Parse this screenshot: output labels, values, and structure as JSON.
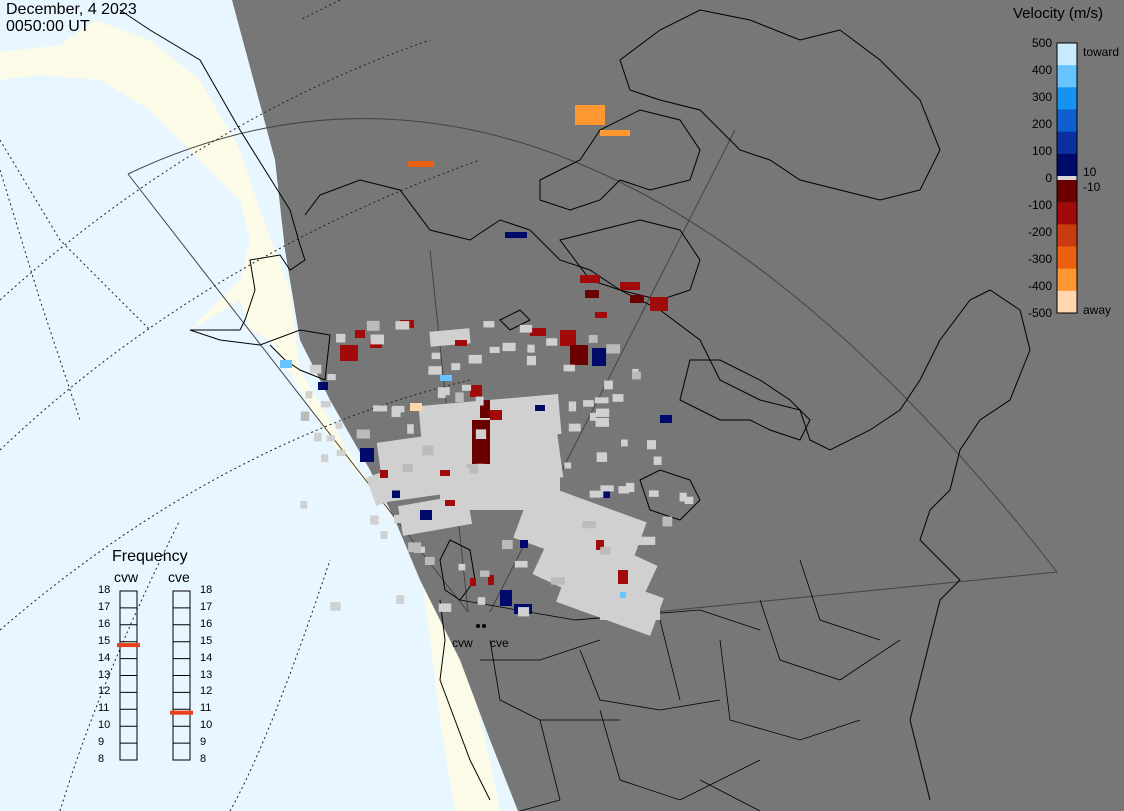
{
  "header": {
    "date": "December, 4 2023",
    "time": "0050:00 UT"
  },
  "colorbar": {
    "title": "Velocity (m/s)",
    "ticks": [
      "500",
      "400",
      "300",
      "200",
      "100",
      "0",
      "-100",
      "-200",
      "-300",
      "-400",
      "-500"
    ],
    "small_pos": "10",
    "small_neg": "-10",
    "toward_label": "toward",
    "away_label": "away",
    "toward_colors": [
      "#c9eaff",
      "#67c4ff",
      "#1593ee",
      "#0e5fd0",
      "#0d30a0",
      "#000a6a"
    ],
    "away_colors": [
      "#6a0000",
      "#a00a0a",
      "#c83c10",
      "#ec6010",
      "#ff9830",
      "#ffd6b0"
    ]
  },
  "frequency": {
    "title": "Frequency",
    "radars": [
      {
        "name": "cvw",
        "value_mhz": 14.8
      },
      {
        "name": "cve",
        "value_mhz": 10.8
      }
    ],
    "scale": [
      "18",
      "17",
      "16",
      "15",
      "14",
      "13",
      "12",
      "11",
      "10",
      "9",
      "8"
    ]
  },
  "radar_sites": [
    {
      "name": "cvw"
    },
    {
      "name": "cve"
    }
  ],
  "colors": {
    "night_shade": "#777777",
    "ocean_day": "#e8f6ff",
    "land_day": "#fbfbe8",
    "ground_scatter": "#d0d0d0",
    "indicator": "#e8401a"
  }
}
